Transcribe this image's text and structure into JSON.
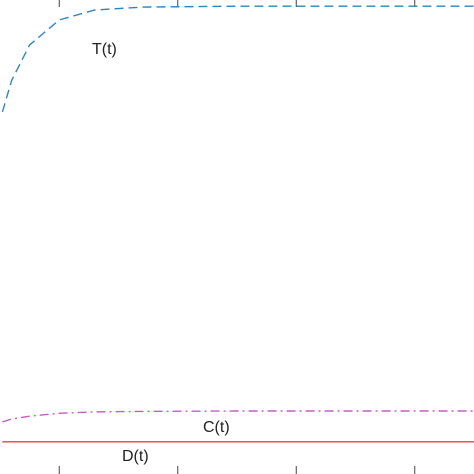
{
  "chart_data": {
    "type": "line",
    "x": [
      0.52,
      0.6,
      0.75,
      1,
      1.3,
      1.7,
      2.5,
      4.5
    ],
    "series": [
      {
        "name": "T(t)",
        "color": "#2e86c1",
        "dash": "dashed",
        "values": [
          76.4,
          83.1,
          90.5,
          95.8,
          97.9,
          98.5,
          98.7,
          98.7
        ]
      },
      {
        "name": "C(t)",
        "color": "#c060c0",
        "dash": "dashdot",
        "values": [
          11.0,
          11.6,
          12.2,
          12.8,
          13.1,
          13.2,
          13.3,
          13.3
        ]
      },
      {
        "name": "D(t)",
        "color": "#e04040",
        "dash": "solid",
        "values": [
          6.8,
          6.8,
          6.8,
          6.8,
          6.8,
          6.8,
          6.8,
          6.8
        ]
      }
    ],
    "xlim": [
      0.5,
      4.5
    ],
    "xticks": [
      1,
      2,
      3,
      4
    ],
    "ylim": [
      0,
      100
    ]
  }
}
